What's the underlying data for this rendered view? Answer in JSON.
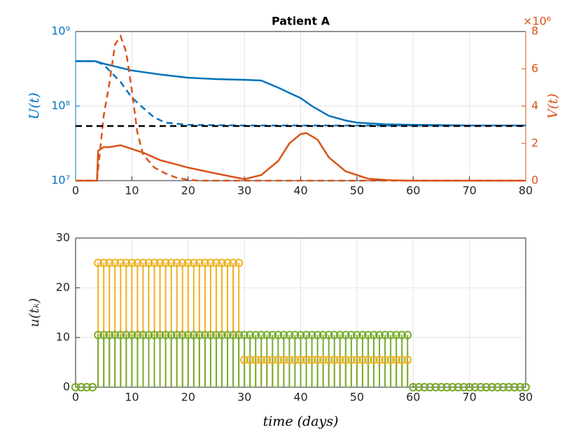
{
  "chart_data": [
    {
      "type": "line",
      "title": "Patient A",
      "ylabel": "U(t)",
      "y2label": "V(t)",
      "y2_multiplier": "×10⁶",
      "log_y": true,
      "grid": true,
      "xlim": [
        0,
        80
      ],
      "xticks": [
        0,
        10,
        20,
        30,
        40,
        50,
        60,
        70,
        80
      ],
      "ylim": [
        10000000,
        1000000000
      ],
      "yticks": [
        {
          "value": 10000000,
          "label": "10⁷"
        },
        {
          "value": 100000000,
          "label": "10⁸"
        },
        {
          "value": 1000000000,
          "label": "10⁹"
        }
      ],
      "y2lim": [
        0,
        8000000
      ],
      "y2ticks": [
        {
          "value": 0,
          "label": "0"
        },
        {
          "value": 2000000,
          "label": "2"
        },
        {
          "value": 4000000,
          "label": "4"
        },
        {
          "value": 6000000,
          "label": "6"
        },
        {
          "value": 8000000,
          "label": "8"
        }
      ],
      "color": "#0072BD",
      "color2": "#D95319",
      "series": [
        {
          "color": "#0072BD",
          "dashed": false,
          "axis": "y",
          "x": [
            0,
            3.5,
            5,
            10,
            15,
            20,
            25,
            30,
            33,
            36,
            38,
            40,
            42,
            45,
            48,
            50,
            55,
            60,
            70,
            80
          ],
          "values": [
            400000000,
            400000000,
            370000000,
            300000000,
            265000000,
            240000000,
            230000000,
            225000000,
            220000000,
            177000000,
            150000000,
            128000000,
            100000000,
            74000000,
            64000000,
            60000000,
            57000000,
            56000000,
            55000000,
            55000000
          ]
        },
        {
          "color": "#0072BD",
          "dashed": true,
          "axis": "y",
          "x": [
            0,
            3.5,
            5,
            6,
            8,
            10,
            12,
            14,
            16,
            20,
            30,
            50,
            80
          ],
          "values": [
            400000000,
            400000000,
            360000000,
            300000000,
            210000000,
            130000000,
            95000000,
            70000000,
            60000000,
            56000000,
            55000000,
            55000000,
            55000000
          ]
        },
        {
          "color": "#D95319",
          "dashed": false,
          "axis": "y2",
          "x": [
            0,
            3.8,
            4,
            5,
            6,
            8,
            10,
            12,
            15,
            20,
            25,
            30,
            33,
            36,
            38,
            40,
            41,
            43,
            45,
            48,
            52,
            56,
            60,
            80
          ],
          "values": [
            0,
            0,
            1600000,
            1800000,
            1800000,
            1900000,
            1700000,
            1500000,
            1100000,
            700000,
            380000,
            80000,
            300000,
            1050000,
            2000000,
            2500000,
            2550000,
            2200000,
            1250000,
            500000,
            100000,
            20000,
            0,
            0
          ]
        },
        {
          "color": "#D95319",
          "dashed": true,
          "axis": "y2",
          "x": [
            0,
            3.8,
            5,
            6,
            7,
            8,
            9,
            10,
            11,
            12,
            14,
            16,
            18,
            20,
            22,
            80
          ],
          "values": [
            0,
            0,
            3500000,
            5200000,
            7300000,
            7750000,
            6900000,
            4800000,
            2550000,
            1400000,
            700000,
            380000,
            150000,
            50000,
            0,
            0
          ]
        },
        {
          "color": "#000000",
          "dashed": true,
          "axis": "y",
          "x": [
            0,
            80
          ],
          "values": [
            54000000,
            54000000
          ]
        }
      ]
    },
    {
      "type": "stem",
      "xlabel": "time (days)",
      "ylabel": "u(tₖ)",
      "grid": true,
      "xlim": [
        0,
        80
      ],
      "xticks": [
        0,
        10,
        20,
        30,
        40,
        50,
        60,
        70,
        80
      ],
      "ylim": [
        0,
        30
      ],
      "yticks": [
        0,
        10,
        20,
        30
      ],
      "x": [
        0,
        1,
        2,
        3,
        4,
        5,
        6,
        7,
        8,
        9,
        10,
        11,
        12,
        13,
        14,
        15,
        16,
        17,
        18,
        19,
        20,
        21,
        22,
        23,
        24,
        25,
        26,
        27,
        28,
        29,
        30,
        31,
        32,
        33,
        34,
        35,
        36,
        37,
        38,
        39,
        40,
        41,
        42,
        43,
        44,
        45,
        46,
        47,
        48,
        49,
        50,
        51,
        52,
        53,
        54,
        55,
        56,
        57,
        58,
        59,
        60,
        61,
        62,
        63,
        64,
        65,
        66,
        67,
        68,
        69,
        70,
        71,
        72,
        73,
        74,
        75,
        76,
        77,
        78,
        79,
        80
      ],
      "series": [
        {
          "color": "#EDB120",
          "values": [
            0,
            0,
            0,
            0,
            25,
            25,
            25,
            25,
            25,
            25,
            25,
            25,
            25,
            25,
            25,
            25,
            25,
            25,
            25,
            25,
            25,
            25,
            25,
            25,
            25,
            25,
            25,
            25,
            25,
            25,
            5.5,
            5.5,
            5.5,
            5.5,
            5.5,
            5.5,
            5.5,
            5.5,
            5.5,
            5.5,
            5.5,
            5.5,
            5.5,
            5.5,
            5.5,
            5.5,
            5.5,
            5.5,
            5.5,
            5.5,
            5.5,
            5.5,
            5.5,
            5.5,
            5.5,
            5.5,
            5.5,
            5.5,
            5.5,
            5.5,
            0,
            0,
            0,
            0,
            0,
            0,
            0,
            0,
            0,
            0,
            0,
            0,
            0,
            0,
            0,
            0,
            0,
            0,
            0,
            0,
            0
          ]
        },
        {
          "color": "#77AC30",
          "values": [
            0,
            0,
            0,
            0,
            10.5,
            10.5,
            10.5,
            10.5,
            10.5,
            10.5,
            10.5,
            10.5,
            10.5,
            10.5,
            10.5,
            10.5,
            10.5,
            10.5,
            10.5,
            10.5,
            10.5,
            10.5,
            10.5,
            10.5,
            10.5,
            10.5,
            10.5,
            10.5,
            10.5,
            10.5,
            10.5,
            10.5,
            10.5,
            10.5,
            10.5,
            10.5,
            10.5,
            10.5,
            10.5,
            10.5,
            10.5,
            10.5,
            10.5,
            10.5,
            10.5,
            10.5,
            10.5,
            10.5,
            10.5,
            10.5,
            10.5,
            10.5,
            10.5,
            10.5,
            10.5,
            10.5,
            10.5,
            10.5,
            10.5,
            10.5,
            0,
            0,
            0,
            0,
            0,
            0,
            0,
            0,
            0,
            0,
            0,
            0,
            0,
            0,
            0,
            0,
            0,
            0,
            0,
            0,
            0
          ]
        }
      ]
    }
  ]
}
